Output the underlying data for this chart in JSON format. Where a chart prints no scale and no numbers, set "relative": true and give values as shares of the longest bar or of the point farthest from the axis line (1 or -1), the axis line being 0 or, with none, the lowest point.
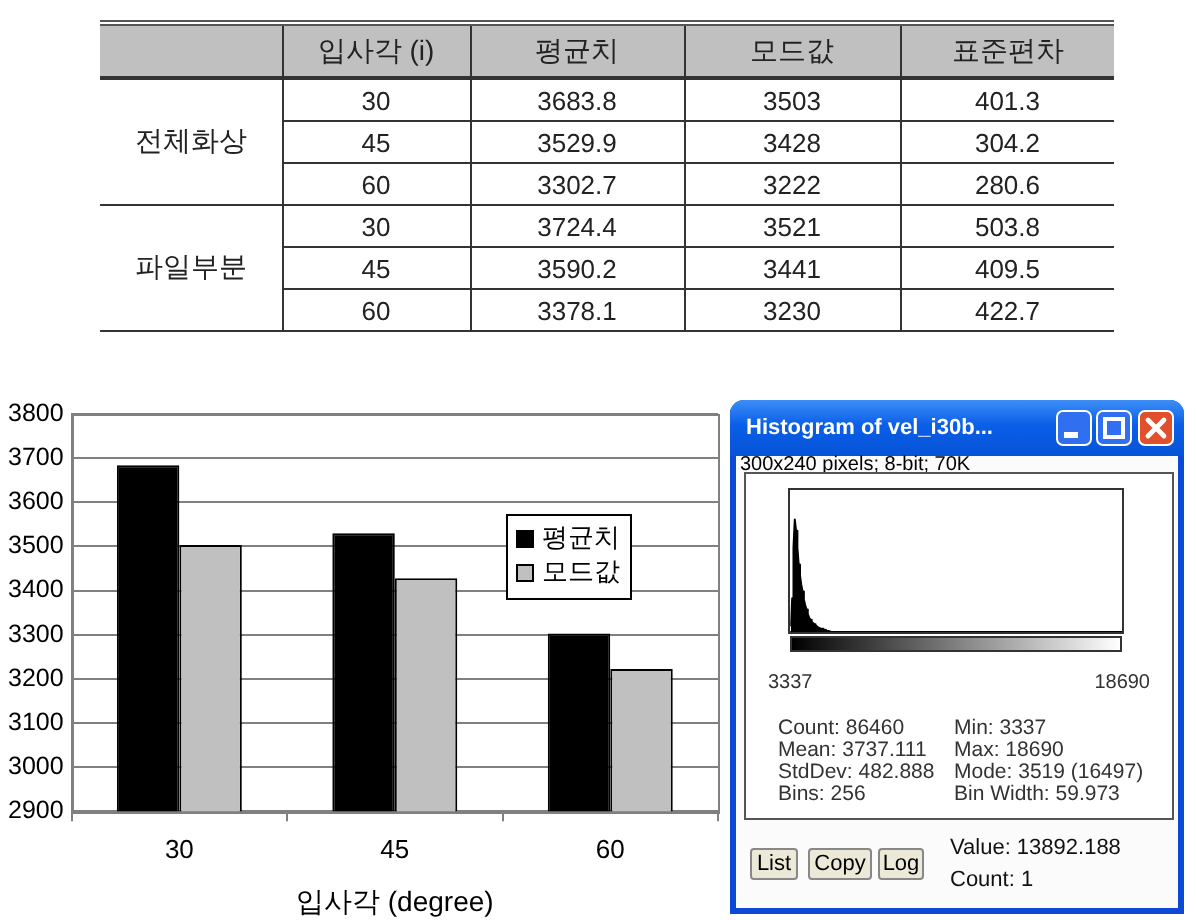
{
  "chart_data": [
    {
      "type": "heatmap",
      "ylabel": "입사각 (i)",
      "categories": [
        "평균치",
        "모드값",
        "표준편차"
      ],
      "y_categories": [
        "30",
        "45",
        "60",
        "30",
        "45",
        "60"
      ],
      "cells": [
        [
          3683.8,
          3503,
          401.3
        ],
        [
          3529.9,
          3428,
          304.2
        ],
        [
          3302.7,
          3222,
          280.6
        ],
        [
          3724.4,
          3521,
          503.8
        ],
        [
          3590.2,
          3441,
          409.5
        ],
        [
          3378.1,
          3230,
          422.7
        ]
      ],
      "data_labels": true,
      "annotations": [
        "전체화상",
        "파일부분"
      ]
    },
    {
      "type": "bar",
      "categories": [
        "30",
        "45",
        "60"
      ],
      "xlabel": "입사각 (degree)",
      "series": [
        {
          "name": "평균치",
          "color": "#000000",
          "values": [
            3683.8,
            3529.9,
            3302.7
          ]
        },
        {
          "name": "모드값",
          "color": "#c0c0c0",
          "values": [
            3503,
            3428,
            3222
          ]
        }
      ],
      "ylim": [
        2900,
        3800
      ],
      "yticks": [
        2900,
        3000,
        3100,
        3200,
        3300,
        3400,
        3500,
        3600,
        3700,
        3800
      ],
      "grid": "y",
      "legend": "right"
    },
    {
      "type": "area",
      "title": "Histogram of vel_i30b...",
      "subtitle": "300x240 pixels; 8-bit; 70K",
      "relative": true,
      "color": "#000000",
      "x": [
        3367,
        3427,
        3487,
        3547,
        3607,
        3667,
        3727,
        3787,
        3847,
        3907,
        3967,
        4027,
        4087,
        4147,
        4207,
        4267,
        4327,
        4387,
        4447,
        4506,
        4566,
        4626,
        4686,
        4746,
        4806,
        4866,
        4926,
        4986,
        5046,
        5106,
        5166,
        5226,
        18690
      ],
      "values": [
        0.05,
        0.3,
        0.75,
        1,
        0.9,
        0.75,
        0.6,
        0.5,
        0.42,
        0.36,
        0.29,
        0.24,
        0.2,
        0.16,
        0.13,
        0.11,
        0.09,
        0.08,
        0.07,
        0.06,
        0.05,
        0.04,
        0.04,
        0.03,
        0.03,
        0.02,
        0.02,
        0.01,
        0.01,
        0.01,
        0.01,
        0,
        0
      ],
      "xlim": [
        3337,
        18690
      ],
      "xticks": [
        3337,
        18690
      ],
      "annotations": [
        "Count: 86460",
        "Mean: 3737.111",
        "StdDev: 482.888",
        "Bins: 256",
        "Min: 3337",
        "Max: 18690",
        "Mode: 3519 (16497)",
        "Bin Width: 59.973",
        "List",
        "Copy",
        "Log",
        "Value: 13892.188",
        "Count: 1"
      ]
    }
  ]
}
